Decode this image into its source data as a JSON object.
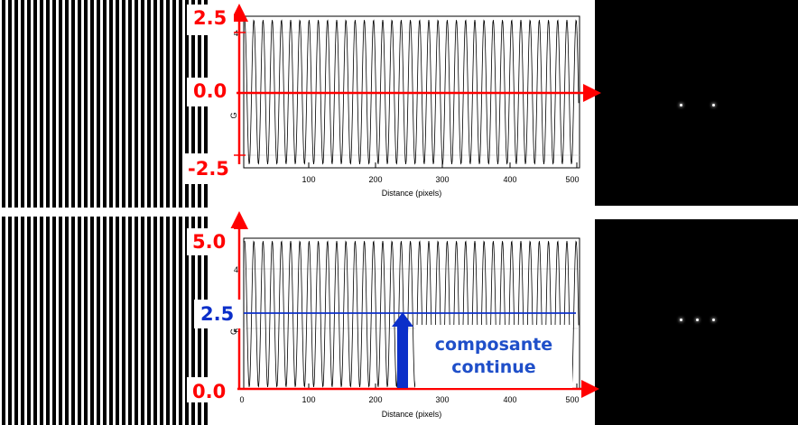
{
  "panels": [
    {
      "y_axis_title": "G",
      "x_axis_title": "Distance (pixels)",
      "x_ticks": [
        "100",
        "200",
        "300",
        "400",
        "500"
      ],
      "y_tick_visible": "4",
      "annotations": {
        "max": "2.5",
        "mid": "0.0",
        "min": "-2.5"
      },
      "spectrum_peaks": 2
    },
    {
      "y_axis_title": "Gr",
      "x_axis_title": "Distance (pixels)",
      "x_ticks": [
        "0",
        "100",
        "200",
        "300",
        "400",
        "500"
      ],
      "y_ticks_visible": [
        "4",
        "2"
      ],
      "annotations": {
        "max": "5.0",
        "dc": "2.5",
        "min": "0.0"
      },
      "callout": {
        "line1": "composante",
        "line2": "continue"
      },
      "spectrum_peaks": 3
    }
  ],
  "colors": {
    "annotation": "#ff0000",
    "dc_line": "#0b2fc9",
    "callout_text": "#1f4fc9"
  }
}
